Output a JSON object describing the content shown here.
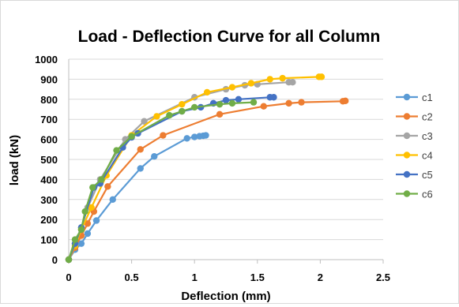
{
  "chart_data": {
    "type": "scatter",
    "title": "Load - Deflection Curve for all Column",
    "xlabel": "Deflection (mm)",
    "ylabel": "load (kN)",
    "xlim": [
      0,
      2.5
    ],
    "ylim": [
      0,
      1000
    ],
    "x_ticks": [
      "0",
      "0.5",
      "1",
      "1.5",
      "2",
      "2.5"
    ],
    "y_ticks": [
      "0",
      "100",
      "200",
      "300",
      "400",
      "500",
      "600",
      "700",
      "800",
      "900",
      "1000"
    ],
    "x_tick_values": [
      0,
      0.5,
      1,
      1.5,
      2,
      2.5
    ],
    "y_tick_values": [
      0,
      100,
      200,
      300,
      400,
      500,
      600,
      700,
      800,
      900,
      1000
    ],
    "grid": "horizontal",
    "legend_position": "right",
    "series": [
      {
        "name": "c1",
        "color": "#5b9bd5",
        "points": [
          [
            0,
            0
          ],
          [
            0.05,
            50
          ],
          [
            0.1,
            80
          ],
          [
            0.15,
            130
          ],
          [
            0.22,
            195
          ],
          [
            0.35,
            300
          ],
          [
            0.57,
            455
          ],
          [
            0.68,
            515
          ],
          [
            0.94,
            605
          ],
          [
            1.0,
            612
          ],
          [
            1.04,
            616
          ],
          [
            1.07,
            618
          ],
          [
            1.09,
            620
          ]
        ]
      },
      {
        "name": "c2",
        "color": "#ed7d31",
        "points": [
          [
            0,
            0
          ],
          [
            0.05,
            60
          ],
          [
            0.1,
            120
          ],
          [
            0.15,
            180
          ],
          [
            0.2,
            240
          ],
          [
            0.31,
            365
          ],
          [
            0.57,
            550
          ],
          [
            0.75,
            620
          ],
          [
            1.2,
            725
          ],
          [
            1.55,
            765
          ],
          [
            1.75,
            780
          ],
          [
            1.85,
            785
          ],
          [
            2.18,
            790
          ],
          [
            2.2,
            792
          ]
        ]
      },
      {
        "name": "c3",
        "color": "#a5a5a5",
        "points": [
          [
            0,
            0
          ],
          [
            0.05,
            80
          ],
          [
            0.1,
            160
          ],
          [
            0.15,
            260
          ],
          [
            0.25,
            400
          ],
          [
            0.45,
            600
          ],
          [
            0.6,
            690
          ],
          [
            1.0,
            810
          ],
          [
            1.25,
            850
          ],
          [
            1.4,
            870
          ],
          [
            1.5,
            875
          ],
          [
            1.75,
            885
          ],
          [
            1.78,
            885
          ]
        ]
      },
      {
        "name": "c4",
        "color": "#ffc000",
        "points": [
          [
            0,
            0
          ],
          [
            0.05,
            70
          ],
          [
            0.1,
            150
          ],
          [
            0.18,
            260
          ],
          [
            0.3,
            420
          ],
          [
            0.5,
            620
          ],
          [
            0.7,
            715
          ],
          [
            0.9,
            775
          ],
          [
            1.1,
            835
          ],
          [
            1.3,
            860
          ],
          [
            1.45,
            880
          ],
          [
            1.6,
            900
          ],
          [
            1.7,
            905
          ],
          [
            1.99,
            912
          ],
          [
            2.01,
            912
          ]
        ]
      },
      {
        "name": "c5",
        "color": "#4472c4",
        "points": [
          [
            0,
            0
          ],
          [
            0.05,
            80
          ],
          [
            0.1,
            160
          ],
          [
            0.2,
            360
          ],
          [
            0.25,
            380
          ],
          [
            0.43,
            560
          ],
          [
            0.5,
            610
          ],
          [
            0.55,
            630
          ],
          [
            0.9,
            740
          ],
          [
            1.05,
            760
          ],
          [
            1.15,
            780
          ],
          [
            1.25,
            795
          ],
          [
            1.35,
            800
          ],
          [
            1.6,
            810
          ],
          [
            1.63,
            810
          ]
        ]
      },
      {
        "name": "c6",
        "color": "#70ad47",
        "points": [
          [
            0,
            0
          ],
          [
            0.05,
            100
          ],
          [
            0.1,
            150
          ],
          [
            0.13,
            240
          ],
          [
            0.19,
            360
          ],
          [
            0.26,
            400
          ],
          [
            0.38,
            545
          ],
          [
            0.5,
            615
          ],
          [
            0.8,
            720
          ],
          [
            0.9,
            740
          ],
          [
            1.0,
            760
          ],
          [
            1.2,
            775
          ],
          [
            1.3,
            780
          ],
          [
            1.47,
            785
          ]
        ]
      }
    ]
  }
}
